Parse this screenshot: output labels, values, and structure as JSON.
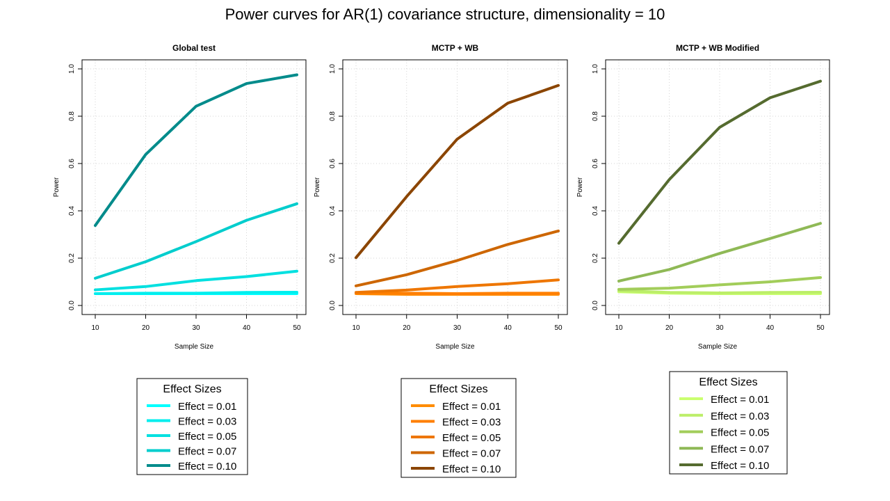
{
  "title": "Power curves for AR(1) covariance structure, dimensionality = 10",
  "chart_data": [
    {
      "type": "line",
      "title": "Global test",
      "xlabel": "Sample Size",
      "ylabel": "Power",
      "x": [
        10,
        20,
        30,
        40,
        50
      ],
      "xlim": [
        10,
        50
      ],
      "ylim": [
        0,
        1
      ],
      "xticks": [
        "10",
        "20",
        "30",
        "40",
        "50"
      ],
      "yticks": [
        "0.0",
        "0.2",
        "0.4",
        "0.6",
        "0.8",
        "1.0"
      ],
      "grid": true,
      "legend_title": "Effect Sizes",
      "series": [
        {
          "name": "Effect = 0.01",
          "color": "#00ffff",
          "values": [
            0.05,
            0.05,
            0.05,
            0.05,
            0.05
          ]
        },
        {
          "name": "Effect = 0.03",
          "color": "#00eeee",
          "values": [
            0.05,
            0.052,
            0.052,
            0.055,
            0.056
          ]
        },
        {
          "name": "Effect = 0.05",
          "color": "#00e0e0",
          "values": [
            0.066,
            0.08,
            0.105,
            0.122,
            0.145
          ]
        },
        {
          "name": "Effect = 0.07",
          "color": "#00cdcd",
          "values": [
            0.115,
            0.185,
            0.27,
            0.36,
            0.43
          ]
        },
        {
          "name": "Effect = 0.10",
          "color": "#008b8b",
          "values": [
            0.338,
            0.638,
            0.842,
            0.938,
            0.975
          ]
        }
      ]
    },
    {
      "type": "line",
      "title": "MCTP + WB",
      "xlabel": "Sample Size",
      "ylabel": "Power",
      "x": [
        10,
        20,
        30,
        40,
        50
      ],
      "xlim": [
        10,
        50
      ],
      "ylim": [
        0,
        1
      ],
      "xticks": [
        "10",
        "20",
        "30",
        "40",
        "50"
      ],
      "yticks": [
        "0.0",
        "0.2",
        "0.4",
        "0.6",
        "0.8",
        "1.0"
      ],
      "grid": true,
      "legend_title": "Effect Sizes",
      "series": [
        {
          "name": "Effect = 0.01",
          "color": "#ff8c00",
          "values": [
            0.05,
            0.047,
            0.047,
            0.047,
            0.047
          ]
        },
        {
          "name": "Effect = 0.03",
          "color": "#ff7f00",
          "values": [
            0.053,
            0.052,
            0.05,
            0.052,
            0.052
          ]
        },
        {
          "name": "Effect = 0.05",
          "color": "#ee7600",
          "values": [
            0.055,
            0.065,
            0.08,
            0.092,
            0.108
          ]
        },
        {
          "name": "Effect = 0.07",
          "color": "#cd6600",
          "values": [
            0.083,
            0.13,
            0.19,
            0.258,
            0.315
          ]
        },
        {
          "name": "Effect = 0.10",
          "color": "#8b4500",
          "values": [
            0.202,
            0.46,
            0.703,
            0.855,
            0.93
          ]
        }
      ]
    },
    {
      "type": "line",
      "title": "MCTP + WB Modified",
      "xlabel": "Sample Size",
      "ylabel": "Power",
      "x": [
        10,
        20,
        30,
        40,
        50
      ],
      "xlim": [
        10,
        50
      ],
      "ylim": [
        0,
        1
      ],
      "xticks": [
        "10",
        "20",
        "30",
        "40",
        "50"
      ],
      "yticks": [
        "0.0",
        "0.2",
        "0.4",
        "0.6",
        "0.8",
        "1.0"
      ],
      "grid": true,
      "legend_title": "Effect Sizes",
      "series": [
        {
          "name": "Effect = 0.01",
          "color": "#caff70",
          "values": [
            0.058,
            0.052,
            0.05,
            0.05,
            0.05
          ]
        },
        {
          "name": "Effect = 0.03",
          "color": "#bcee68",
          "values": [
            0.062,
            0.055,
            0.053,
            0.055,
            0.056
          ]
        },
        {
          "name": "Effect = 0.05",
          "color": "#a2cd5a",
          "values": [
            0.068,
            0.073,
            0.087,
            0.1,
            0.118
          ]
        },
        {
          "name": "Effect = 0.07",
          "color": "#8fb956",
          "values": [
            0.103,
            0.152,
            0.22,
            0.283,
            0.347
          ]
        },
        {
          "name": "Effect = 0.10",
          "color": "#556b2f",
          "values": [
            0.263,
            0.532,
            0.753,
            0.878,
            0.948
          ]
        }
      ]
    }
  ]
}
